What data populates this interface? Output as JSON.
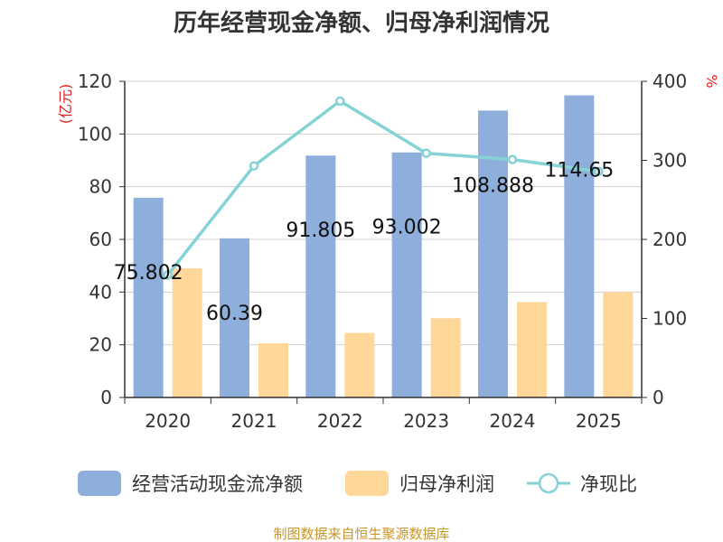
{
  "chart_data": {
    "type": "bar",
    "title": "历年经营现金净额、归母净利润情况",
    "categories": [
      "2020",
      "2021",
      "2022",
      "2023",
      "2024",
      "2025"
    ],
    "series": [
      {
        "name": "经营活动现金流净额",
        "axis": "left",
        "type": "bar",
        "color": "#8eaedb",
        "values": [
          75.802,
          60.39,
          91.805,
          93.002,
          108.888,
          114.65
        ],
        "labels": [
          "75.802",
          "60.39",
          "91.805",
          "93.002",
          "108.888",
          "114.65"
        ]
      },
      {
        "name": "归母净利润",
        "axis": "left",
        "type": "bar",
        "color": "#ffd798",
        "values": [
          49,
          20.6,
          24.5,
          30.1,
          36.2,
          40
        ]
      },
      {
        "name": "净现比",
        "axis": "right",
        "type": "line",
        "color": "#86d3d6",
        "values": [
          155,
          293,
          375,
          309,
          301,
          286
        ]
      }
    ],
    "left_axis": {
      "label": "(亿元)",
      "min": 0,
      "max": 120,
      "ticks": [
        "0",
        "20",
        "40",
        "60",
        "80",
        "100",
        "120"
      ]
    },
    "right_axis": {
      "label": "%",
      "min": 0,
      "max": 400,
      "ticks": [
        "0",
        "100",
        "200",
        "300",
        "400"
      ]
    },
    "grid": true,
    "legend_position": "bottom",
    "source": "制图数据来自恒生聚源数据库"
  }
}
